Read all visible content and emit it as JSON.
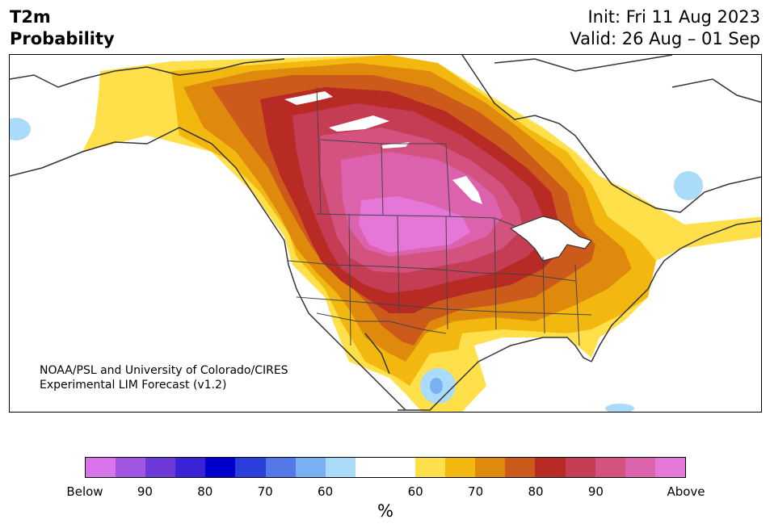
{
  "header": {
    "title_line1": "T2m",
    "title_line2": "Probability",
    "init_label": "Init: Fri 11 Aug 2023",
    "valid_label": "Valid: 26 Aug – 01 Sep"
  },
  "map": {
    "region": "North America",
    "variable": "T2m",
    "credit_line1": "NOAA/PSL and University of Colorado/CIRES",
    "credit_line2": "Experimental LIM Forecast (v1.2)"
  },
  "colorbar": {
    "segments": [
      "#d875ea",
      "#a155e3",
      "#6d3ad9",
      "#3a22d6",
      "#0000cc",
      "#2a3fda",
      "#5478e8",
      "#78b0f2",
      "#aadbf8",
      "#ffffff",
      "#ffffff",
      "#ffe04a",
      "#f3b80f",
      "#e08a0d",
      "#cc5a1a",
      "#b82a24",
      "#c43d55",
      "#d45280",
      "#dd62ae",
      "#e577d8"
    ],
    "tick_labels": [
      "Below",
      "90",
      "80",
      "70",
      "60",
      "60",
      "70",
      "80",
      "90",
      "Above"
    ],
    "units": "%"
  }
}
